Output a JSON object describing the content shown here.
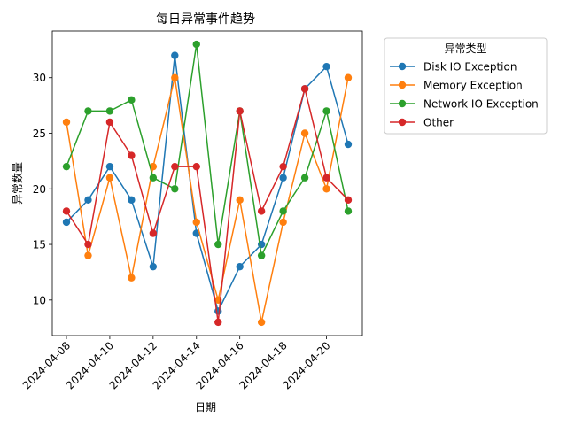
{
  "chart_data": {
    "type": "line",
    "title": "每日异常事件趋势",
    "xlabel": "日期",
    "ylabel": "异常数量",
    "x": [
      "2024-04-08",
      "2024-04-09",
      "2024-04-10",
      "2024-04-11",
      "2024-04-12",
      "2024-04-13",
      "2024-04-14",
      "2024-04-15",
      "2024-04-16",
      "2024-04-17",
      "2024-04-18",
      "2024-04-19",
      "2024-04-20",
      "2024-04-21"
    ],
    "x_tick_labels": [
      "2024-04-08",
      "2024-04-10",
      "2024-04-12",
      "2024-04-14",
      "2024-04-16",
      "2024-04-18",
      "2024-04-20"
    ],
    "y_ticks": [
      10,
      15,
      20,
      25,
      30
    ],
    "ylim": [
      6.8,
      34.2
    ],
    "grid": false,
    "legend": {
      "title": "异常类型",
      "placement": "outside-top-right"
    },
    "series": [
      {
        "name": "Disk IO Exception",
        "color": "#1f77b4",
        "values": [
          17,
          19,
          22,
          19,
          13,
          32,
          16,
          9,
          13,
          15,
          21,
          29,
          31,
          24
        ]
      },
      {
        "name": "Memory Exception",
        "color": "#ff7f0e",
        "values": [
          26,
          14,
          21,
          12,
          22,
          30,
          17,
          10,
          19,
          8,
          17,
          25,
          20,
          30
        ]
      },
      {
        "name": "Network IO Exception",
        "color": "#2ca02c",
        "values": [
          22,
          27,
          27,
          28,
          21,
          20,
          33,
          15,
          27,
          14,
          18,
          21,
          27,
          18
        ]
      },
      {
        "name": "Other",
        "color": "#d62728",
        "values": [
          18,
          15,
          26,
          23,
          16,
          22,
          22,
          8,
          27,
          18,
          22,
          29,
          21,
          19
        ]
      }
    ]
  }
}
